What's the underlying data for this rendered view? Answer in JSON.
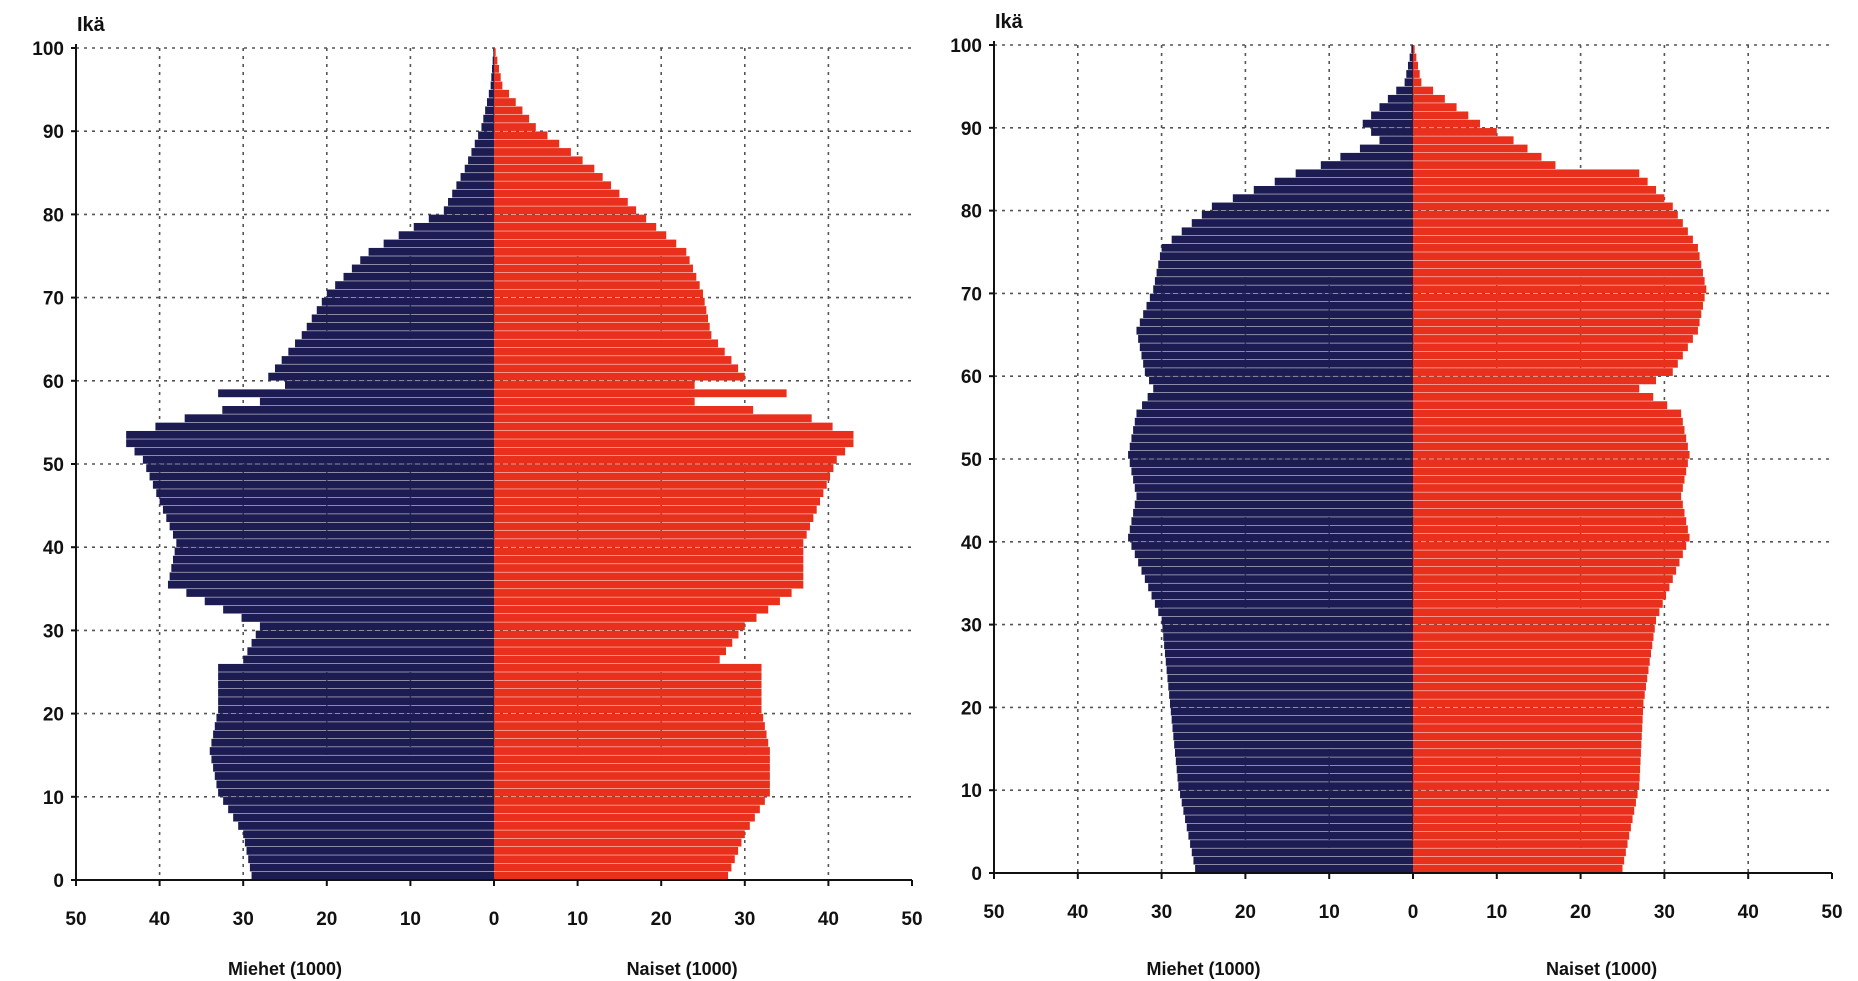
{
  "colors": {
    "men": "#1c1b52",
    "women": "#e8301c",
    "grid": "#555555",
    "axis": "#111111"
  },
  "chart_data": [
    {
      "type": "bar",
      "subtype": "population-pyramid",
      "title": "",
      "ylabel": "Ikä",
      "xlabel_left": "Miehet (1000)",
      "xlabel_right": "Naiset (1000)",
      "xlim": [
        -50,
        50
      ],
      "ylim": [
        0,
        100
      ],
      "xticks": [
        "50",
        "40",
        "30",
        "20",
        "10",
        "0",
        "10",
        "20",
        "30",
        "40",
        "50"
      ],
      "yticks": [
        "0",
        "10",
        "20",
        "30",
        "40",
        "50",
        "60",
        "70",
        "80",
        "90",
        "100"
      ],
      "grid": true,
      "series": [
        {
          "name": "Miehet (1000)",
          "ages": [
            0,
            5,
            10,
            15,
            20,
            25,
            26,
            30,
            35,
            40,
            45,
            50,
            52,
            53,
            55,
            57,
            58,
            59,
            60,
            65,
            70,
            75,
            80,
            85,
            90,
            95,
            100
          ],
          "values": [
            29,
            30,
            33,
            34,
            33,
            33,
            30,
            28,
            39,
            38,
            40,
            42,
            44,
            44,
            37,
            28,
            33,
            25,
            27,
            23,
            20,
            15,
            6,
            3.5,
            1.5,
            0.4,
            0
          ]
        },
        {
          "name": "Naiset (1000)",
          "ages": [
            0,
            5,
            10,
            15,
            20,
            25,
            26,
            30,
            35,
            40,
            45,
            50,
            52,
            53,
            55,
            57,
            58,
            59,
            60,
            65,
            70,
            75,
            80,
            85,
            90,
            95,
            100
          ],
          "values": [
            28,
            30,
            33,
            33,
            32,
            32,
            27,
            30,
            37,
            37,
            39,
            41,
            43,
            43,
            38,
            24,
            35,
            24,
            30,
            26,
            25,
            23,
            17,
            12,
            5,
            1,
            0
          ]
        }
      ]
    },
    {
      "type": "bar",
      "subtype": "population-pyramid",
      "title": "",
      "ylabel": "Ikä",
      "xlabel_left": "Miehet (1000)",
      "xlabel_right": "Naiset (1000)",
      "xlim": [
        -50,
        50
      ],
      "ylim": [
        0,
        100
      ],
      "xticks": [
        "50",
        "40",
        "30",
        "20",
        "10",
        "0",
        "10",
        "20",
        "30",
        "40",
        "50"
      ],
      "yticks": [
        "0",
        "10",
        "20",
        "30",
        "40",
        "50",
        "60",
        "70",
        "80",
        "90",
        "100"
      ],
      "grid": true,
      "series": [
        {
          "name": "Miehet (1000)",
          "ages": [
            0,
            10,
            20,
            30,
            35,
            40,
            45,
            50,
            55,
            58,
            60,
            65,
            70,
            75,
            80,
            84,
            85,
            88,
            90,
            95,
            100
          ],
          "values": [
            26,
            28,
            29,
            30,
            32,
            34,
            33,
            34,
            33,
            31,
            32,
            33,
            31,
            30,
            24,
            14,
            11,
            4,
            6,
            1,
            0
          ]
        },
        {
          "name": "Naiset (1000)",
          "ages": [
            0,
            10,
            20,
            30,
            35,
            40,
            45,
            50,
            55,
            58,
            60,
            65,
            70,
            75,
            80,
            84,
            85,
            88,
            90,
            95,
            100
          ],
          "values": [
            25,
            27,
            27.5,
            29,
            31,
            33,
            32,
            33,
            32,
            27,
            31,
            34,
            35,
            34,
            31,
            27,
            17,
            12,
            8,
            1,
            0
          ]
        }
      ]
    }
  ]
}
